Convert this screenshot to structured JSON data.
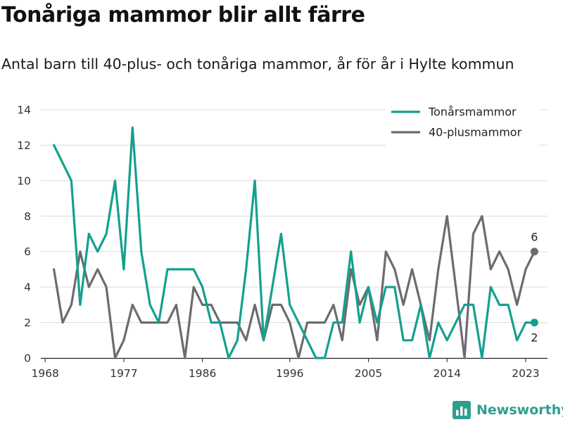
{
  "header": {
    "title": "Tonåriga mammor blir allt färre",
    "subtitle": "Antal barn till 40-plus- och tonåriga mammor, år för år i Hylte kommun"
  },
  "brand": {
    "name": "Newsworthy",
    "color": "#2f9e8f"
  },
  "chart_data": {
    "type": "line",
    "title": "Tonåriga mammor blir allt färre",
    "subtitle": "Antal barn till 40-plus- och tonåriga mammor, år för år i Hylte kommun",
    "xlabel": "",
    "ylabel": "",
    "x": [
      1969,
      1970,
      1971,
      1972,
      1973,
      1974,
      1975,
      1976,
      1977,
      1978,
      1979,
      1980,
      1981,
      1982,
      1983,
      1984,
      1985,
      1986,
      1987,
      1988,
      1989,
      1990,
      1991,
      1992,
      1993,
      1994,
      1995,
      1996,
      1997,
      1998,
      1999,
      2000,
      2001,
      2002,
      2003,
      2004,
      2005,
      2006,
      2007,
      2008,
      2009,
      2010,
      2011,
      2012,
      2013,
      2014,
      2015,
      2016,
      2017,
      2018,
      2019,
      2020,
      2021,
      2022,
      2023,
      2024
    ],
    "x_ticks": [
      1968,
      1977,
      1986,
      1996,
      2005,
      2014,
      2023
    ],
    "y_ticks": [
      0,
      2,
      4,
      6,
      8,
      10,
      12,
      14
    ],
    "xlim": [
      1967.5,
      2025.5
    ],
    "ylim": [
      0,
      14
    ],
    "grid": "horizontal",
    "legend_position": "top-right",
    "series": [
      {
        "name": "Tonårsmammor",
        "color": "#14a090",
        "values": [
          12,
          11,
          10,
          3,
          7,
          6,
          7,
          10,
          5,
          13,
          6,
          3,
          2,
          5,
          5,
          5,
          5,
          4,
          2,
          2,
          0,
          1,
          5,
          10,
          1,
          4,
          7,
          3,
          2,
          1,
          0,
          0,
          2,
          2,
          6,
          2,
          4,
          2,
          4,
          4,
          1,
          1,
          3,
          0,
          2,
          1,
          2,
          3,
          3,
          0,
          4,
          3,
          3,
          1,
          2,
          2
        ],
        "end_label": "2"
      },
      {
        "name": "40-plusmammor",
        "color": "#6c6c70",
        "values": [
          5,
          2,
          3,
          6,
          4,
          5,
          4,
          0,
          1,
          3,
          2,
          2,
          2,
          2,
          3,
          0,
          4,
          3,
          3,
          2,
          2,
          2,
          1,
          3,
          1,
          3,
          3,
          2,
          0,
          2,
          2,
          2,
          3,
          1,
          5,
          3,
          4,
          1,
          6,
          5,
          3,
          5,
          3,
          1,
          5,
          8,
          4,
          0,
          7,
          8,
          5,
          6,
          5,
          3,
          5,
          6
        ],
        "end_label": "6"
      }
    ]
  }
}
